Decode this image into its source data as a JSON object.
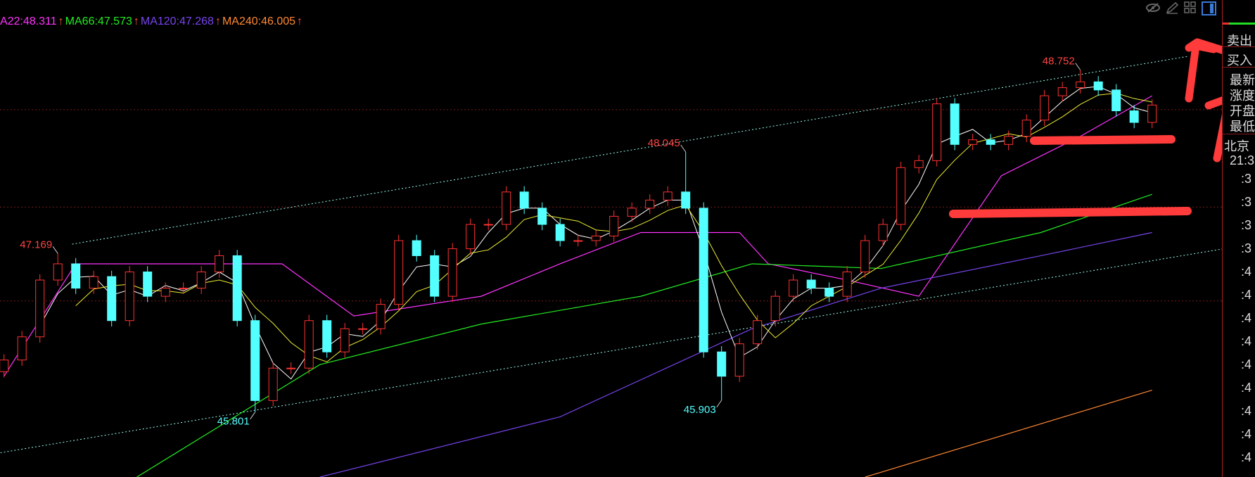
{
  "legend": [
    {
      "text": "A22:48.311",
      "color": "#ff33ff",
      "arrow": "↑"
    },
    {
      "text": "MA66:47.573",
      "color": "#22ee22",
      "arrow": "↑"
    },
    {
      "text": "MA120:47.268",
      "color": "#7744ee",
      "arrow": "↑"
    },
    {
      "text": "MA240:46.005",
      "color": "#ff8833",
      "arrow": "↑"
    }
  ],
  "toolbar_icons": [
    "eye-slash-icon",
    "pencil-icon",
    "grid-icon",
    "panel-toggle-icon"
  ],
  "panel": {
    "sell": "卖出",
    "buy": "买入",
    "quote_rows": [
      "最新",
      "涨度",
      "开盘",
      "最低"
    ],
    "time_zone": "北京",
    "time": "21:3",
    "tick_rows": [
      ":3",
      ":3",
      ":3",
      ":3",
      ":4",
      ":4",
      ":4",
      ":4",
      ":4",
      ":4",
      ":4",
      ":4",
      ":4"
    ]
  },
  "chart_data": {
    "type": "candlestick",
    "up_color": "#ff3232",
    "down_color": "#54ffff",
    "close": [
      46.25,
      46.45,
      46.94,
      47.08,
      46.87,
      46.97,
      46.59,
      47.01,
      46.8,
      46.87,
      46.87,
      47.01,
      47.15,
      46.59,
      45.9,
      46.18,
      46.18,
      46.59,
      46.32,
      46.52,
      46.52,
      46.73,
      47.28,
      47.15,
      46.8,
      47.21,
      47.42,
      47.42,
      47.7,
      47.56,
      47.42,
      47.28,
      47.28,
      47.32,
      47.49,
      47.56,
      47.63,
      47.7,
      47.56,
      46.32,
      46.11,
      46.39,
      46.59,
      46.8,
      46.94,
      46.87,
      46.8,
      47.01,
      47.28,
      47.42,
      47.91,
      47.97,
      48.46,
      48.11,
      48.15,
      48.11,
      48.18,
      48.32,
      48.53,
      48.6,
      48.65,
      48.58,
      48.4,
      48.3,
      48.45
    ],
    "annotations": [
      {
        "index": 3,
        "value": 47.169,
        "type": "high",
        "color": "#ff4444"
      },
      {
        "index": 14,
        "value": 45.801,
        "type": "low",
        "color": "#54ffff"
      },
      {
        "index": 38,
        "value": 48.045,
        "type": "high",
        "color": "#ff4444"
      },
      {
        "index": 40,
        "value": 45.903,
        "type": "low",
        "color": "#54ffff"
      },
      {
        "index": 60,
        "value": 48.752,
        "type": "high",
        "color": "#ff4444"
      }
    ],
    "moving_averages": [
      {
        "name": "MA22",
        "color": "#ff33ff",
        "points": [
          [
            0,
            46.11
          ],
          [
            4,
            47.08
          ],
          [
            9,
            47.08
          ],
          [
            15.5,
            47.08
          ],
          [
            19.5,
            46.63
          ],
          [
            26.6,
            46.8
          ],
          [
            31,
            47.08
          ],
          [
            35.5,
            47.35
          ],
          [
            41,
            47.35
          ],
          [
            42.6,
            47.08
          ],
          [
            47,
            46.94
          ],
          [
            51,
            46.8
          ],
          [
            55.6,
            47.84
          ],
          [
            60,
            48.18
          ],
          [
            64,
            48.53
          ]
        ]
      },
      {
        "name": "MA66",
        "color": "#22ee22",
        "points": [
          [
            7.4,
            45.24
          ],
          [
            17.6,
            46.21
          ],
          [
            26.6,
            46.56
          ],
          [
            35.5,
            46.8
          ],
          [
            41.7,
            47.08
          ],
          [
            48.9,
            47.04
          ],
          [
            57.8,
            47.35
          ],
          [
            64,
            47.68
          ]
        ]
      },
      {
        "name": "MA120",
        "color": "#7744ee",
        "points": [
          [
            17.6,
            45.24
          ],
          [
            31,
            45.76
          ],
          [
            41.7,
            46.52
          ],
          [
            48.9,
            46.87
          ],
          [
            57.8,
            47.15
          ],
          [
            64,
            47.35
          ]
        ]
      },
      {
        "name": "MA240",
        "color": "#ff8833",
        "points": [
          [
            48,
            45.24
          ],
          [
            64,
            45.99
          ]
        ]
      }
    ],
    "channel_lines": [
      {
        "from": [
          3.8,
          47.25
        ],
        "to": [
          66,
          48.87
        ]
      },
      {
        "from": [
          -0.2,
          45.45
        ],
        "to": [
          68,
          47.21
        ]
      }
    ],
    "price_grid": [
      48.41,
      47.57,
      46.76
    ]
  }
}
